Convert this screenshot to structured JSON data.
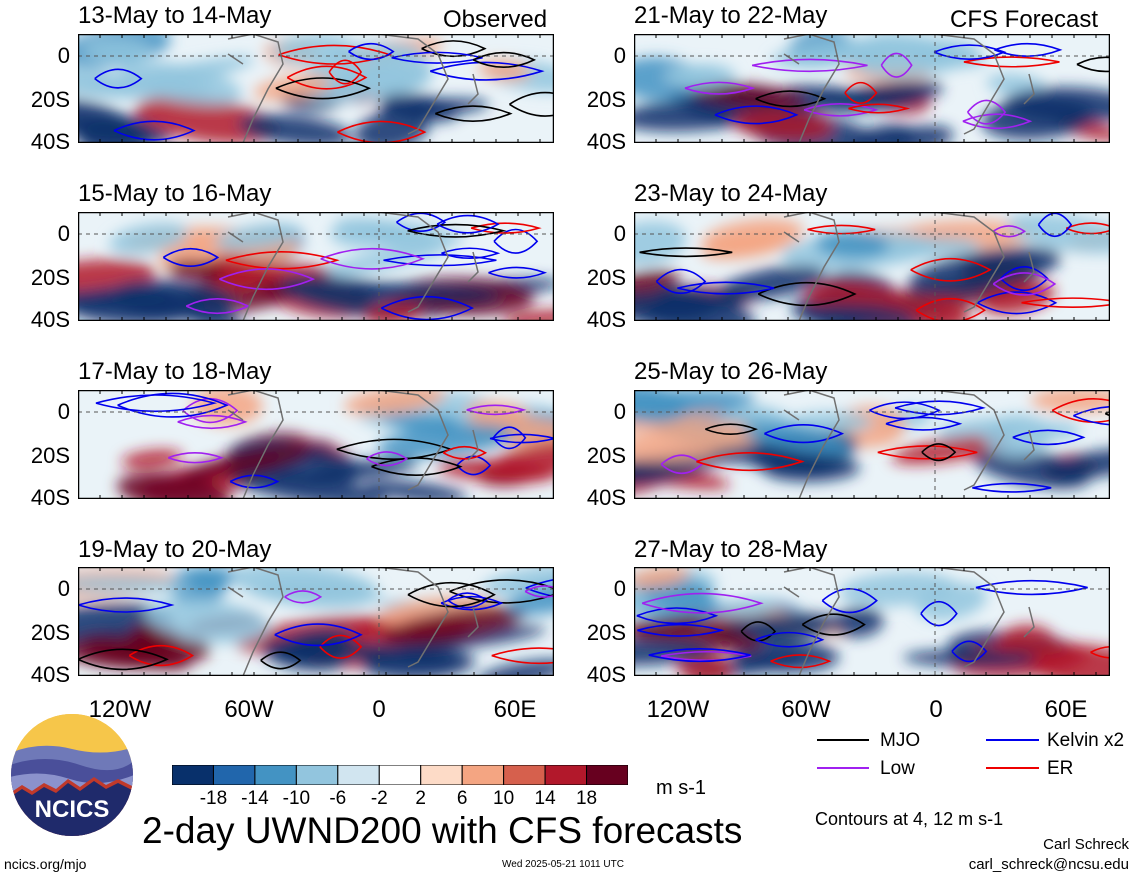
{
  "panels_left": [
    {
      "title": "13-May to 14-May",
      "tag": "Observed"
    },
    {
      "title": "15-May to 16-May",
      "tag": ""
    },
    {
      "title": "17-May to 18-May",
      "tag": ""
    },
    {
      "title": "19-May to 20-May",
      "tag": ""
    }
  ],
  "panels_right": [
    {
      "title": "21-May to 22-May",
      "tag": "CFS Forecast"
    },
    {
      "title": "23-May to 24-May",
      "tag": ""
    },
    {
      "title": "25-May to 26-May",
      "tag": ""
    },
    {
      "title": "27-May to 28-May",
      "tag": ""
    }
  ],
  "y_ticks": [
    "0",
    "20S",
    "40S"
  ],
  "x_ticks": [
    "120W",
    "60W",
    "0",
    "60E"
  ],
  "legend": {
    "mjo": "MJO",
    "kelvin": "Kelvin x2",
    "low": "Low",
    "er": "ER",
    "colors": {
      "mjo": "#000000",
      "kelvin": "#0000ee",
      "low": "#a020f0",
      "er": "#ee0000"
    }
  },
  "colorbar": {
    "labels": [
      "-18",
      "-14",
      "-10",
      "-6",
      "-2",
      "2",
      "6",
      "10",
      "14",
      "18"
    ],
    "colors": [
      "#08306b",
      "#2166ac",
      "#4393c3",
      "#92c5de",
      "#d1e5f0",
      "#ffffff",
      "#fddbc7",
      "#f4a582",
      "#d6604d",
      "#b2182b",
      "#67001f"
    ],
    "units": "m s-1"
  },
  "title": "2-day UWND200 with CFS forecasts",
  "contour_note": "Contours at 4, 12 m s-1",
  "author": "Carl Schreck",
  "email": "carl_schreck@ncsu.edu",
  "site": "ncics.org/mjo",
  "timestamp": "Wed 2025-05-21 1011 UTC",
  "logo_text": "NCICS"
}
